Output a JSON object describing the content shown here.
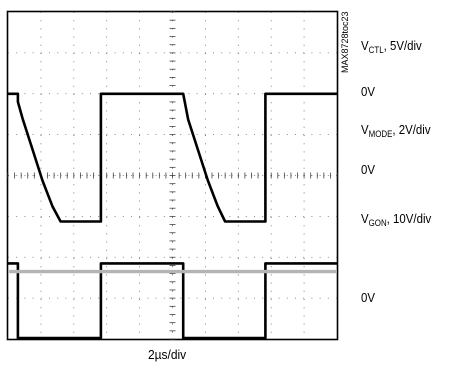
{
  "figure_id": "MAX8728toc23",
  "chart_data": {
    "type": "line",
    "title": "",
    "xlabel": "2µs/div",
    "grid": true,
    "grid_divisions": {
      "x": 10,
      "y": 8
    },
    "xlim": [
      0,
      20
    ],
    "x_unit": "µs",
    "series": [
      {
        "key": "vctl",
        "name_text": "V",
        "name_sub": "CTL",
        "scale_text": ", 5V/div",
        "zero_label": "0V",
        "color": "#000000",
        "x": [
          0,
          0.6,
          0.6,
          5.65,
          5.65,
          10.65,
          10.65,
          15.65,
          15.65,
          20
        ],
        "y": [
          7.4,
          7.4,
          0.1,
          0.1,
          7.4,
          7.4,
          0.1,
          0.1,
          7.4,
          7.4
        ]
      },
      {
        "key": "vmode",
        "name_text": "V",
        "name_sub": "MODE",
        "scale_text": ", 2V/div",
        "zero_label": "0V",
        "color": "#b4b4b4",
        "x": [
          0,
          20
        ],
        "y": [
          6.6,
          6.6
        ]
      },
      {
        "key": "vgon",
        "name_text": "V",
        "name_sub": "GON",
        "scale_text": ", 10V/div",
        "zero_label": "0V",
        "color": "#000000",
        "x": [
          0,
          0.6,
          0.6,
          0.9,
          1.5,
          2.1,
          2.7,
          3.2,
          5.65,
          5.65,
          10.65,
          10.95,
          11.55,
          12.15,
          12.75,
          13.2,
          15.65,
          15.65,
          20
        ],
        "y": [
          24.0,
          24.0,
          23.2,
          21.5,
          18.5,
          15.5,
          13.0,
          11.5,
          11.5,
          24.0,
          24.0,
          21.5,
          18.5,
          15.5,
          13.0,
          11.5,
          11.5,
          24.0,
          24.0
        ]
      }
    ]
  }
}
